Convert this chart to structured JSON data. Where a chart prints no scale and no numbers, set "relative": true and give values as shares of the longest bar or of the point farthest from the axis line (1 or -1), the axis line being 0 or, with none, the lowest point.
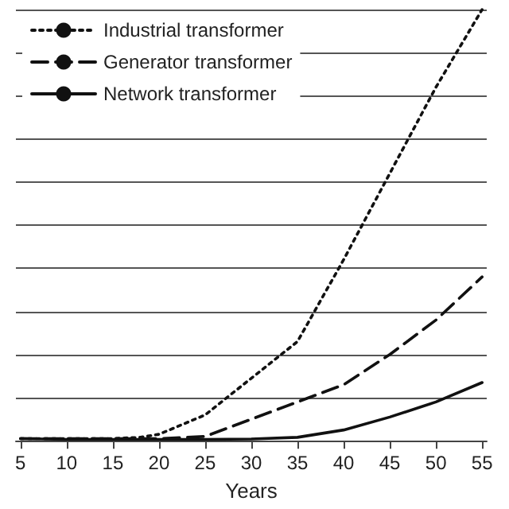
{
  "chart_data": {
    "type": "line",
    "xlabel": "Years",
    "relative": true,
    "xlim": [
      4.5,
      55.5
    ],
    "xticks": [
      5,
      10,
      15,
      20,
      25,
      30,
      35,
      40,
      45,
      50,
      55
    ],
    "grid": "y",
    "legend": "top left",
    "marker": "none",
    "series": [
      {
        "name": "Industrial transformer",
        "color": "#111111",
        "line_style": "dotted",
        "x": [
          5,
          10,
          15,
          18,
          20,
          25,
          30,
          35,
          40,
          45,
          50,
          55
        ],
        "values": [
          0.005,
          0.005,
          0.005,
          0.008,
          0.015,
          0.06,
          0.145,
          0.23,
          0.42,
          0.62,
          0.82,
          1
        ]
      },
      {
        "name": "Generator transformer",
        "color": "#111111",
        "line_style": "dashed",
        "x": [
          5,
          10,
          15,
          20,
          25,
          30,
          35,
          40,
          45,
          50,
          55
        ],
        "values": [
          0.005,
          0.005,
          0.005,
          0.005,
          0.01,
          0.05,
          0.09,
          0.13,
          0.2,
          0.28,
          0.38
        ]
      },
      {
        "name": "Network transformer",
        "color": "#111111",
        "line_style": "solid",
        "x": [
          5,
          10,
          15,
          20,
          25,
          30,
          35,
          40,
          45,
          50,
          55
        ],
        "values": [
          0.005,
          0.003,
          0.003,
          0.003,
          0.003,
          0.004,
          0.008,
          0.025,
          0.055,
          0.09,
          0.135
        ]
      }
    ]
  }
}
